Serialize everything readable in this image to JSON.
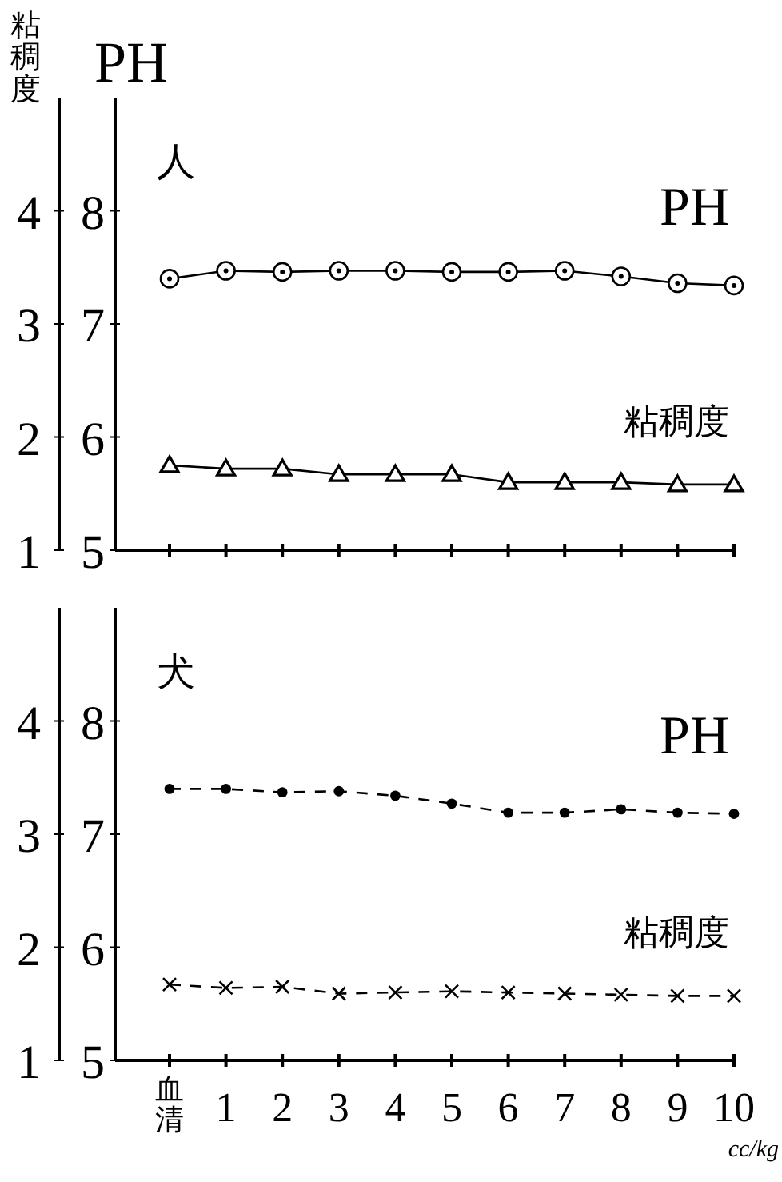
{
  "chart_data": [
    {
      "type": "line",
      "title": "人",
      "ylabel": "PH",
      "y2label": "粘稠度",
      "categories": [
        null,
        null,
        null,
        null,
        null,
        null,
        null,
        null,
        null,
        null,
        null
      ],
      "ylim": [
        5,
        9
      ],
      "yticks": [
        5,
        6,
        7,
        8
      ],
      "y2lim": [
        1,
        5
      ],
      "y2ticks": [
        1,
        2,
        3,
        4
      ],
      "series": [
        {
          "name": "PH",
          "color": "#000000",
          "marker": "circle",
          "line_style": "solid",
          "values": [
            7.4,
            7.47,
            7.46,
            7.47,
            7.47,
            7.46,
            7.46,
            7.47,
            7.42,
            7.36,
            7.34
          ]
        },
        {
          "name": "粘稠度",
          "color": "#000000",
          "marker": "triangle",
          "line_style": "solid",
          "axis": "y2",
          "values": [
            1.75,
            1.72,
            1.72,
            1.67,
            1.67,
            1.67,
            1.6,
            1.6,
            1.6,
            1.58,
            1.58
          ]
        }
      ]
    },
    {
      "type": "line",
      "title": "犬",
      "xlabel": "cc/kg",
      "categories": [
        "血清",
        "1",
        "2",
        "3",
        "4",
        "5",
        "6",
        "7",
        "8",
        "9",
        "10"
      ],
      "ylim": [
        5,
        9
      ],
      "yticks": [
        5,
        6,
        7,
        8
      ],
      "y2lim": [
        1,
        5
      ],
      "y2ticks": [
        1,
        2,
        3,
        4
      ],
      "series": [
        {
          "name": "PH",
          "color": "#000000",
          "marker": "circle",
          "line_style": "dashed",
          "values": [
            7.4,
            7.4,
            7.37,
            7.38,
            7.34,
            7.27,
            7.19,
            7.19,
            7.22,
            7.19,
            7.18
          ]
        },
        {
          "name": "粘稠度",
          "color": "#000000",
          "marker": "cross",
          "line_style": "dashed",
          "axis": "y2",
          "values": [
            1.67,
            1.64,
            1.65,
            1.59,
            1.6,
            1.61,
            1.6,
            1.59,
            1.58,
            1.57,
            1.57
          ]
        }
      ]
    }
  ]
}
